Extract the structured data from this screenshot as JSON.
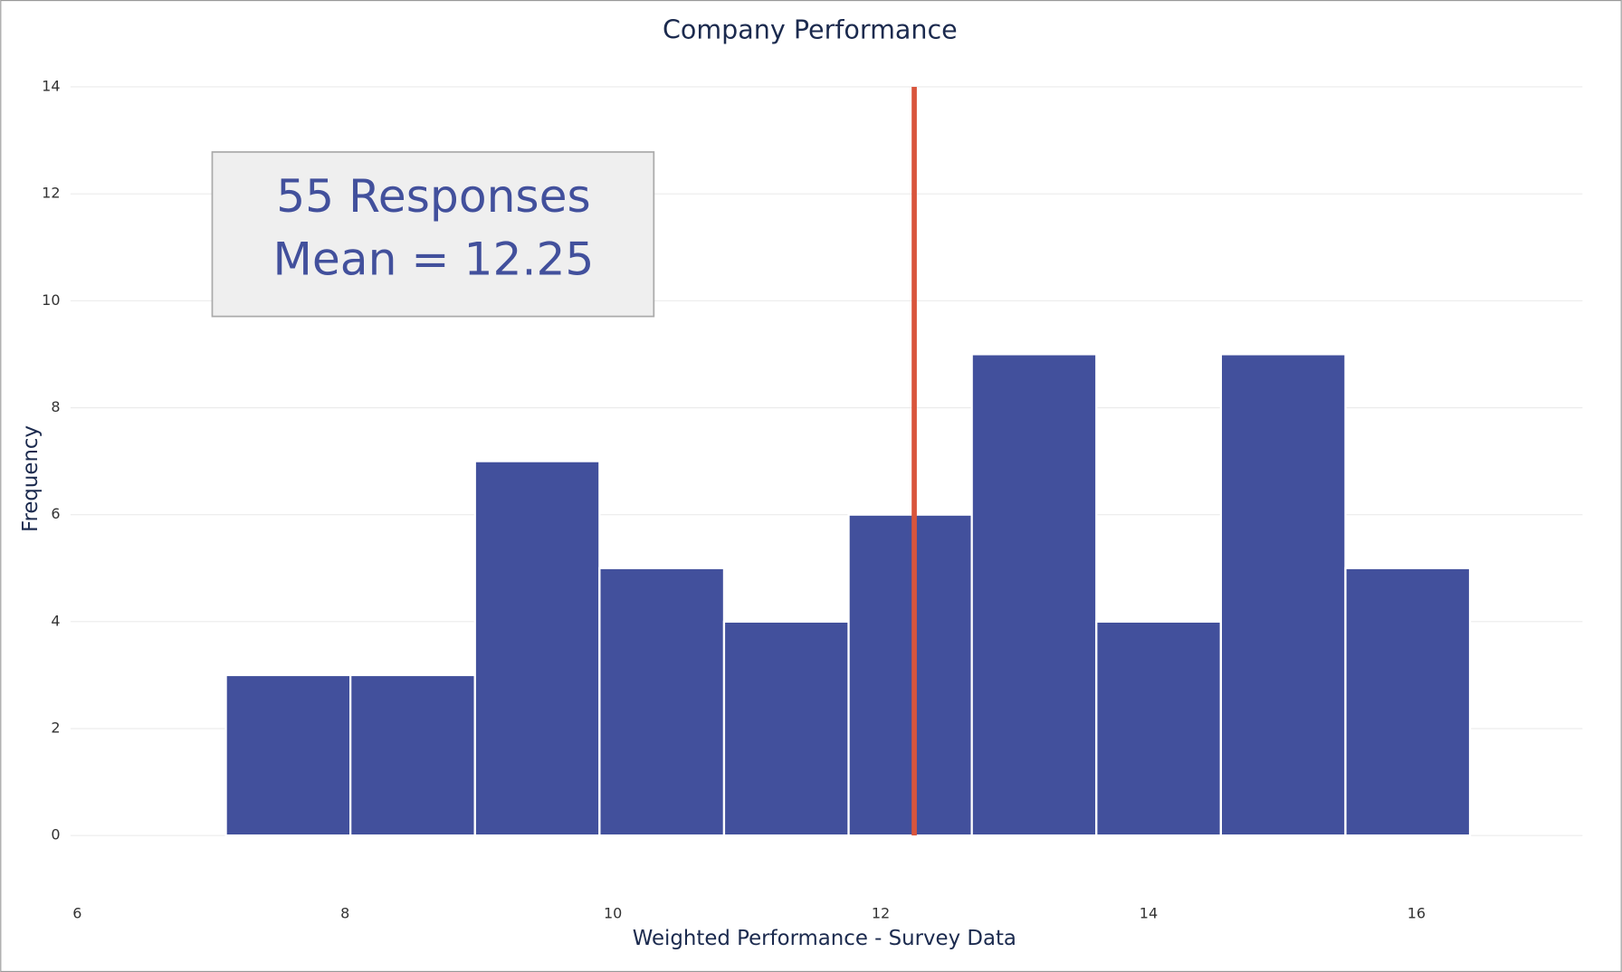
{
  "chart_data": {
    "type": "histogram",
    "title": "Company Performance",
    "x_label": "Weighted Performance - Survey Data",
    "y_label": "Frequency",
    "bins": [
      7.11,
      8.04,
      8.97,
      9.9,
      10.83,
      11.76,
      12.68,
      13.61,
      14.54,
      15.47,
      16.4
    ],
    "values": [
      3,
      3,
      7,
      5,
      4,
      6,
      9,
      4,
      9,
      5
    ],
    "color": "#42509c",
    "mean": 12.25,
    "mean_color": "#d9553c",
    "annotation": [
      "55 Responses",
      "Mean = 12.25"
    ],
    "xlim": [
      5.95,
      17.24
    ],
    "xticks": [
      6,
      8,
      10,
      12,
      14,
      16
    ],
    "ylim": [
      0,
      14
    ],
    "yticks": [
      0,
      2,
      4,
      6,
      8,
      10,
      12,
      14
    ],
    "grid": true
  }
}
